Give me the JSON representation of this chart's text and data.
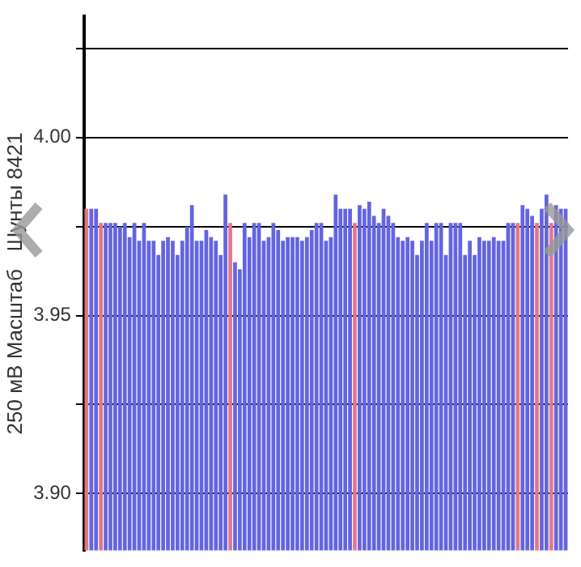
{
  "chart_data": {
    "type": "bar",
    "ylabel": "250 мВ Масштаб   Шунты 8421",
    "categories": [
      null,
      null,
      null,
      null,
      null,
      null,
      null,
      null,
      null,
      null,
      null,
      null,
      null,
      null,
      null,
      null,
      null,
      null,
      null,
      null,
      null,
      null,
      null,
      null,
      null,
      null,
      null,
      null,
      null,
      null,
      null,
      null,
      null,
      null,
      null,
      null,
      null,
      null,
      null,
      null,
      null,
      null,
      null,
      null,
      null,
      null,
      null,
      null,
      null,
      null,
      null,
      null,
      null,
      null,
      null,
      null,
      null,
      null,
      null,
      null,
      null,
      null,
      null,
      null,
      null,
      null,
      null,
      null,
      null,
      null,
      null,
      null,
      null,
      null,
      null,
      null,
      null,
      null,
      null,
      null,
      null,
      null,
      null,
      null,
      null,
      null,
      null,
      null,
      null,
      null,
      null,
      null,
      null,
      null,
      null,
      null,
      null,
      null,
      null,
      null,
      null
    ],
    "values": [
      3.98,
      3.98,
      3.98,
      3.976,
      3.976,
      3.976,
      3.976,
      3.975,
      3.976,
      3.972,
      3.976,
      3.971,
      3.976,
      3.971,
      3.971,
      3.967,
      3.971,
      3.972,
      3.971,
      3.967,
      3.971,
      3.975,
      3.981,
      3.971,
      3.971,
      3.974,
      3.972,
      3.971,
      3.967,
      3.984,
      3.976,
      3.965,
      3.963,
      3.976,
      3.972,
      3.976,
      3.976,
      3.971,
      3.972,
      3.976,
      3.974,
      3.971,
      3.972,
      3.972,
      3.972,
      3.971,
      3.972,
      3.974,
      3.976,
      3.976,
      3.971,
      3.972,
      3.984,
      3.98,
      3.98,
      3.98,
      3.976,
      3.981,
      3.98,
      3.982,
      3.978,
      3.976,
      3.98,
      3.978,
      3.976,
      3.972,
      3.971,
      3.972,
      3.971,
      3.967,
      3.971,
      3.976,
      3.971,
      3.976,
      3.976,
      3.967,
      3.976,
      3.976,
      3.976,
      3.967,
      3.971,
      3.967,
      3.972,
      3.971,
      3.971,
      3.972,
      3.971,
      3.971,
      3.976,
      3.976,
      3.976,
      3.981,
      3.98,
      3.978,
      3.976,
      3.98,
      3.984,
      3.976,
      3.981,
      3.98,
      3.98
    ],
    "colors": [
      "#e07888",
      "#6464e0",
      "#6464e0",
      "#e07888",
      "#6464e0",
      "#6464e0",
      "#6464e0",
      "#6464e0",
      "#6464e0",
      "#6464e0",
      "#6464e0",
      "#6464e0",
      "#6464e0",
      "#6464e0",
      "#6464e0",
      "#6464e0",
      "#6464e0",
      "#6464e0",
      "#6464e0",
      "#6464e0",
      "#6464e0",
      "#6464e0",
      "#6464e0",
      "#6464e0",
      "#6464e0",
      "#6464e0",
      "#6464e0",
      "#6464e0",
      "#6464e0",
      "#6464e0",
      "#e07888",
      "#6464e0",
      "#6464e0",
      "#6464e0",
      "#6464e0",
      "#6464e0",
      "#6464e0",
      "#6464e0",
      "#6464e0",
      "#6464e0",
      "#6464e0",
      "#6464e0",
      "#6464e0",
      "#6464e0",
      "#6464e0",
      "#6464e0",
      "#6464e0",
      "#6464e0",
      "#6464e0",
      "#6464e0",
      "#6464e0",
      "#6464e0",
      "#6464e0",
      "#6464e0",
      "#6464e0",
      "#6464e0",
      "#e07888",
      "#6464e0",
      "#6464e0",
      "#6464e0",
      "#6464e0",
      "#6464e0",
      "#6464e0",
      "#6464e0",
      "#6464e0",
      "#6464e0",
      "#6464e0",
      "#6464e0",
      "#6464e0",
      "#6464e0",
      "#6464e0",
      "#6464e0",
      "#6464e0",
      "#6464e0",
      "#6464e0",
      "#6464e0",
      "#6464e0",
      "#6464e0",
      "#6464e0",
      "#6464e0",
      "#6464e0",
      "#6464e0",
      "#6464e0",
      "#6464e0",
      "#6464e0",
      "#6464e0",
      "#6464e0",
      "#6464e0",
      "#6464e0",
      "#6464e0",
      "#e07888",
      "#6464e0",
      "#6464e0",
      "#6464e0",
      "#e07888",
      "#6464e0",
      "#6464e0",
      "#e07888",
      "#6464e0",
      "#6464e0",
      "#6464e0"
    ],
    "ylim": [
      3.884,
      4.034
    ],
    "yticks": [
      {
        "value": 3.9,
        "label": "3.90"
      },
      {
        "value": 3.925,
        "label": null
      },
      {
        "value": 3.95,
        "label": "3.95"
      },
      {
        "value": 3.975,
        "label": null
      },
      {
        "value": 4.0,
        "label": "4.00"
      },
      {
        "value": 4.025,
        "label": null
      }
    ],
    "grid": "y",
    "tick_labels": "y",
    "legend": false
  }
}
